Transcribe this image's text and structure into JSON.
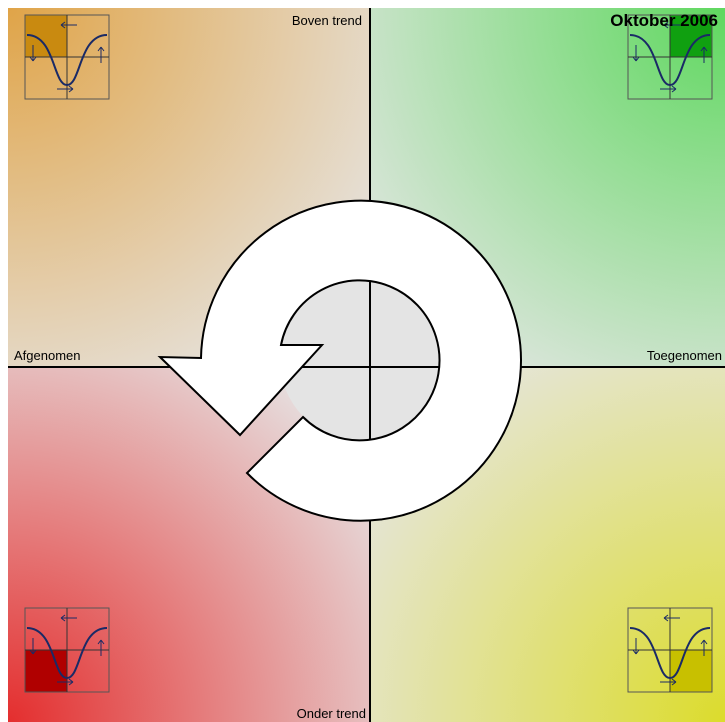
{
  "title": "Oktober 2006",
  "labels": {
    "top": "Boven trend",
    "bottom": "Onder trend",
    "left": "Afgenomen",
    "right": "Toegenomen"
  }
}
